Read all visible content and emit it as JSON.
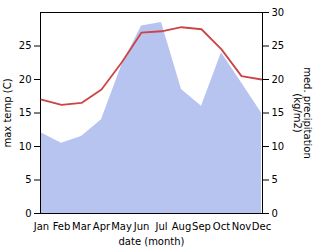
{
  "chart_data": {
    "type": "line",
    "xlabel": "date (month)",
    "ylabel": "max temp (C)",
    "y2label": "med. precipitation\n(kg/m2)",
    "categories": [
      "Jan",
      "Feb",
      "Mar",
      "Apr",
      "May",
      "Jun",
      "Jul",
      "Aug",
      "Sep",
      "Oct",
      "Nov",
      "Dec"
    ],
    "series": [
      {
        "type": "area",
        "axis": "y2",
        "color": "#b8c4f0",
        "values": [
          12.0,
          10.5,
          11.5,
          14.0,
          22.0,
          28.0,
          28.5,
          18.5,
          16.0,
          24.0,
          19.5,
          15.0
        ]
      },
      {
        "type": "line",
        "color": "#cc4444",
        "values": [
          17.0,
          16.2,
          16.5,
          18.5,
          22.5,
          27.0,
          27.2,
          27.8,
          27.5,
          24.5,
          20.5,
          20.0
        ]
      }
    ],
    "ylim": [
      0,
      30
    ],
    "yticks": [
      0,
      5,
      10,
      15,
      20,
      25
    ],
    "y2lim": [
      0,
      30
    ],
    "y2ticks": [
      0,
      5,
      10,
      15,
      20,
      25,
      30
    ],
    "grid": false
  }
}
